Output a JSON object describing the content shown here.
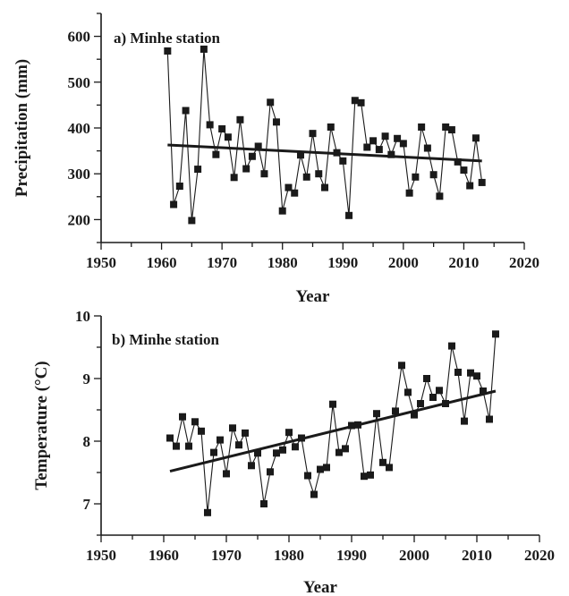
{
  "chart_data": [
    {
      "type": "line",
      "title": "a)  Minhe station",
      "xlabel": "Year",
      "ylabel": "Precipitation (mm)",
      "xlim": [
        1950,
        2020
      ],
      "ylim": [
        150,
        650
      ],
      "xticks": [
        1950,
        1960,
        1970,
        1980,
        1990,
        2000,
        2010,
        2020
      ],
      "yticks": [
        200,
        300,
        400,
        500,
        600
      ],
      "grid": false,
      "series": [
        {
          "marker": "square",
          "x": [
            1961,
            1962,
            1963,
            1964,
            1965,
            1966,
            1967,
            1968,
            1969,
            1970,
            1971,
            1972,
            1973,
            1974,
            1975,
            1976,
            1977,
            1978,
            1979,
            1980,
            1981,
            1982,
            1983,
            1984,
            1985,
            1986,
            1987,
            1988,
            1989,
            1990,
            1991,
            1992,
            1993,
            1994,
            1995,
            1996,
            1997,
            1998,
            1999,
            2000,
            2001,
            2002,
            2003,
            2004,
            2005,
            2006,
            2007,
            2008,
            2009,
            2010,
            2011,
            2012,
            2013
          ],
          "y": [
            568,
            233,
            273,
            438,
            198,
            310,
            572,
            407,
            342,
            398,
            380,
            292,
            418,
            311,
            338,
            360,
            300,
            456,
            413,
            219,
            270,
            258,
            341,
            293,
            388,
            300,
            270,
            402,
            346,
            328,
            209,
            460,
            455,
            358,
            372,
            353,
            382,
            342,
            377,
            366,
            258,
            293,
            402,
            356,
            298,
            251,
            402,
            396,
            326,
            308,
            274,
            378,
            281
          ]
        }
      ],
      "trend": {
        "x": [
          1961,
          2013
        ],
        "y": [
          363,
          328
        ]
      }
    },
    {
      "type": "line",
      "title": "b) Minhe station",
      "xlabel": "Year",
      "ylabel": "Temperature (°C)",
      "xlim": [
        1950,
        2020
      ],
      "ylim": [
        6.5,
        10
      ],
      "xticks": [
        1950,
        1960,
        1970,
        1980,
        1990,
        2000,
        2010,
        2020
      ],
      "yticks": [
        7,
        8,
        9,
        10
      ],
      "grid": false,
      "series": [
        {
          "marker": "square",
          "x": [
            1961,
            1962,
            1963,
            1964,
            1965,
            1966,
            1967,
            1968,
            1969,
            1970,
            1971,
            1972,
            1973,
            1974,
            1975,
            1976,
            1977,
            1978,
            1979,
            1980,
            1981,
            1982,
            1983,
            1984,
            1985,
            1986,
            1987,
            1988,
            1989,
            1990,
            1991,
            1992,
            1993,
            1994,
            1995,
            1996,
            1997,
            1998,
            1999,
            2000,
            2001,
            2002,
            2003,
            2004,
            2005,
            2006,
            2007,
            2008,
            2009,
            2010,
            2011,
            2012,
            2013
          ],
          "y": [
            8.05,
            7.92,
            8.39,
            7.92,
            8.31,
            8.16,
            6.86,
            7.82,
            8.02,
            7.48,
            8.21,
            7.94,
            8.13,
            7.61,
            7.81,
            7.0,
            7.51,
            7.81,
            7.86,
            8.14,
            7.91,
            8.05,
            7.45,
            7.15,
            7.55,
            7.58,
            8.59,
            7.82,
            7.88,
            8.25,
            8.26,
            7.44,
            7.46,
            8.44,
            7.66,
            7.58,
            8.48,
            9.21,
            8.78,
            8.42,
            8.6,
            9.0,
            8.7,
            8.81,
            8.6,
            9.52,
            9.1,
            8.32,
            9.09,
            9.04,
            8.8,
            8.35,
            9.71
          ]
        }
      ],
      "trend": {
        "x": [
          1961,
          2013
        ],
        "y": [
          7.52,
          8.8
        ]
      }
    }
  ]
}
